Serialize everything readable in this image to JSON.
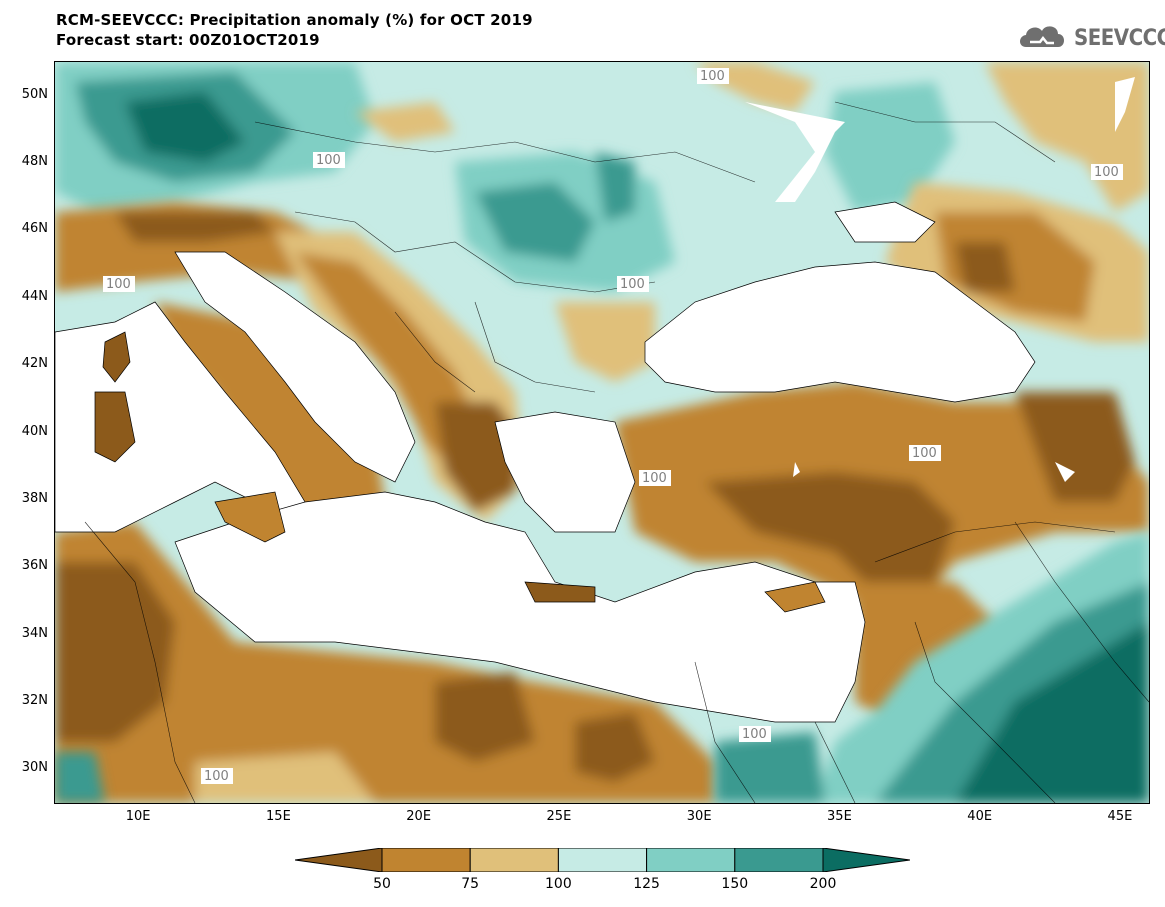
{
  "title": {
    "line1": "RCM-SEEVCCC: Precipitation anomaly (%) for OCT 2019",
    "line2": "Forecast start: 00Z01OCT2019"
  },
  "logo": {
    "text": "SEEVCCC",
    "icon": "cloud-logo-icon"
  },
  "map": {
    "lat_labels": [
      "50N",
      "48N",
      "46N",
      "44N",
      "42N",
      "40N",
      "38N",
      "36N",
      "34N",
      "32N",
      "30N"
    ],
    "lon_labels": [
      "10E",
      "15E",
      "20E",
      "25E",
      "30E",
      "35E",
      "40E",
      "45E"
    ],
    "contour_label": "100",
    "lat_range": [
      29,
      51
    ],
    "lon_range": [
      7,
      46
    ]
  },
  "colorbar": {
    "labels": [
      "50",
      "75",
      "100",
      "125",
      "150",
      "200"
    ],
    "colors": [
      "#8c5a1b",
      "#c08430",
      "#e0c07a",
      "#c6ebe5",
      "#80cfc4",
      "#3a9a90",
      "#0b6d62"
    ]
  }
}
